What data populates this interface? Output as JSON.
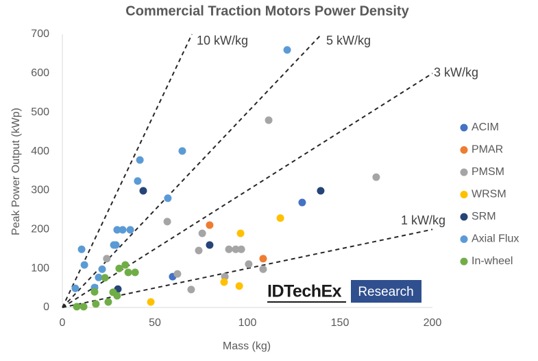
{
  "chart_data": {
    "type": "scatter",
    "title": "Commercial Traction Motors Power Density",
    "x_label": "Mass (kg)",
    "y_label": "Peak Power Output (kWp)",
    "xlim": [
      0,
      200
    ],
    "xticks": [
      0,
      50,
      100,
      150,
      200
    ],
    "ylim": [
      0,
      700
    ],
    "yticks": [
      0,
      100,
      200,
      300,
      400,
      500,
      600,
      700
    ],
    "grid": false,
    "legend": "right",
    "reference_lines": [
      {
        "label": "10 kW/kg",
        "slope": 10
      },
      {
        "label": "5 kW/kg",
        "slope": 5
      },
      {
        "label": "3 kW/kg",
        "slope": 3
      },
      {
        "label": "1 kW/kg",
        "slope": 1
      }
    ],
    "watermark": [
      "IDTechEx",
      "Research"
    ],
    "series": [
      {
        "name": "ACIM",
        "color": "#4472c4",
        "x": [
          59.6,
          129.6
        ],
        "values": [
          79,
          269
        ]
      },
      {
        "name": "PMAR",
        "color": "#ed7d31",
        "x": [
          79.6,
          108.5
        ],
        "values": [
          211,
          125
        ]
      },
      {
        "name": "PMSM",
        "color": "#a5a5a5",
        "x": [
          111.5,
          169.6,
          24,
          56.7,
          75.6,
          73.7,
          90,
          93.7,
          96.7,
          100.7,
          108.5,
          87.8,
          62.2,
          69.6
        ],
        "values": [
          480,
          334,
          125,
          220,
          190,
          146,
          149,
          149,
          149,
          111,
          98,
          79,
          86,
          46
        ]
      },
      {
        "name": "WRSM",
        "color": "#ffc000",
        "x": [
          117.8,
          96.3,
          87.4,
          95.6,
          47.8
        ],
        "values": [
          229,
          190,
          65,
          55,
          14
        ]
      },
      {
        "name": "SRM",
        "color": "#264478",
        "x": [
          43.7,
          139.6,
          79.6,
          30
        ],
        "values": [
          299,
          299,
          160,
          47
        ]
      },
      {
        "name": "Axial Flux",
        "color": "#5b9bd5",
        "x": [
          121.5,
          64.8,
          41.9,
          40.7,
          57,
          10.4,
          29.6,
          32.6,
          36.7,
          27.8,
          28.9,
          11.9,
          21.5,
          19.6,
          7,
          17.4
        ],
        "values": [
          660,
          401,
          378,
          324,
          280,
          149,
          199,
          199,
          199,
          160,
          160,
          109,
          98,
          77,
          49,
          51
        ]
      },
      {
        "name": "In-wheel",
        "color": "#70ad47",
        "x": [
          34,
          30.7,
          35.6,
          39.3,
          23,
          27.4,
          29.6,
          24.8,
          18.1,
          17.4,
          7.8,
          11.5
        ],
        "values": [
          109,
          100,
          90,
          90,
          76,
          39,
          30,
          14,
          9,
          40,
          2,
          2
        ]
      }
    ]
  }
}
